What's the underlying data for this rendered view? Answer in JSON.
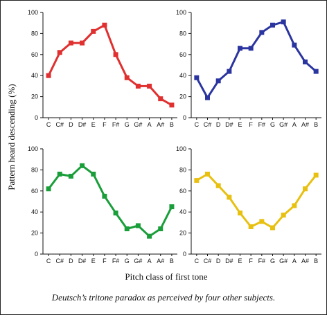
{
  "chart_data": {
    "type": "line",
    "ylabel": "Pattern heard descending (%)",
    "xlabel": "Pitch class of first tone",
    "categories": [
      "C",
      "C#",
      "D",
      "D#",
      "E",
      "F",
      "F#",
      "G",
      "G#",
      "A",
      "A#",
      "B"
    ],
    "yticks": [
      "0",
      "20",
      "40",
      "60",
      "80",
      "100"
    ],
    "ylim": [
      0,
      100
    ],
    "grid": false,
    "panels": [
      {
        "position": "top-left",
        "color": "#e03030",
        "values": [
          40,
          62,
          71,
          71,
          82,
          88,
          60,
          38,
          30,
          30,
          18,
          12
        ]
      },
      {
        "position": "top-right",
        "color": "#2b35a0",
        "values": [
          38,
          19,
          35,
          44,
          66,
          66,
          81,
          88,
          91,
          69,
          53,
          44
        ]
      },
      {
        "position": "bottom-left",
        "color": "#1a9e3a",
        "values": [
          62,
          76,
          74,
          84,
          76,
          55,
          39,
          24,
          27,
          17,
          24,
          45
        ]
      },
      {
        "position": "bottom-right",
        "color": "#e8c010",
        "values": [
          70,
          76,
          65,
          54,
          39,
          26,
          31,
          25,
          37,
          46,
          62,
          75
        ]
      }
    ]
  },
  "caption": "Deutsch’s tritone paradox as perceived by four other subjects."
}
